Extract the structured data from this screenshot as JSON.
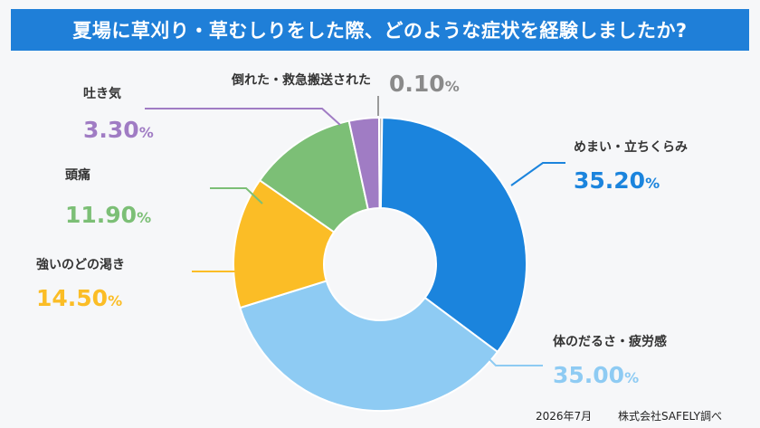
{
  "title": "夏場に草刈り・草むしりをした際、どのような症状を経験しましたか?",
  "footer": {
    "date": "2026年7月",
    "source": "株式会社SAFELY調べ"
  },
  "chart_data": {
    "type": "pie",
    "donut": true,
    "title": "夏場に草刈り・草むしりをした際、どのような症状を経験しましたか?",
    "unit": "%",
    "slices": [
      {
        "label": "めまい・立ちくらみ",
        "value": 35.2,
        "display": "35.20",
        "color": "#1b84dd"
      },
      {
        "label": "体のだるさ・疲労感",
        "value": 35.0,
        "display": "35.00",
        "color": "#8ecbf3"
      },
      {
        "label": "強いのどの渇き",
        "value": 14.5,
        "display": "14.50",
        "color": "#fbbd26"
      },
      {
        "label": "頭痛",
        "value": 11.9,
        "display": "11.90",
        "color": "#7cbf76"
      },
      {
        "label": "吐き気",
        "value": 3.3,
        "display": "3.30",
        "color": "#a07cc4"
      },
      {
        "label": "倒れた・救急搬送された",
        "value": 0.1,
        "display": "0.10",
        "color": "#b8b8b8"
      }
    ]
  }
}
